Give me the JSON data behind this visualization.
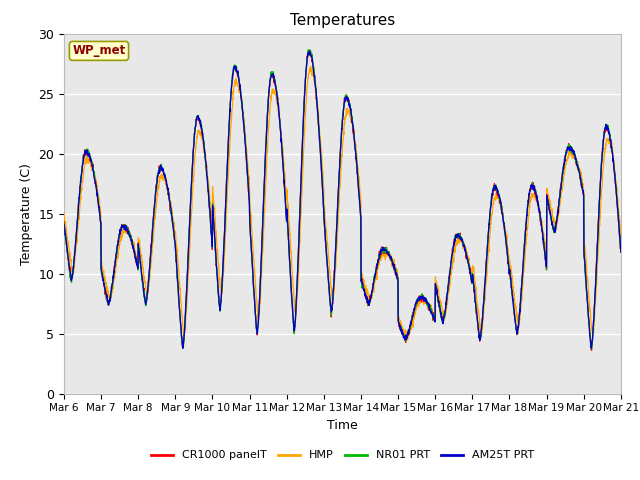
{
  "title": "Temperatures",
  "ylabel": "Temperature (C)",
  "xlabel": "Time",
  "ylim": [
    0,
    30
  ],
  "annotation": "WP_met",
  "bg_color": "#e8e8e8",
  "fig_bg": "#ffffff",
  "legend_labels": [
    "CR1000 panelT",
    "HMP",
    "NR01 PRT",
    "AM25T PRT"
  ],
  "legend_colors": [
    "#ff0000",
    "#ffa500",
    "#00bb00",
    "#0000cc"
  ],
  "xtick_labels": [
    "Mar 6",
    "Mar 7",
    "Mar 8",
    "Mar 9",
    "Mar 10",
    "Mar 11",
    "Mar 12",
    "Mar 13",
    "Mar 14",
    "Mar 15",
    "Mar 16",
    "Mar 17",
    "Mar 18",
    "Mar 19",
    "Mar 20",
    "Mar 21"
  ],
  "num_days": 15,
  "pts_per_day": 144,
  "day_maxes_ref": [
    20.2,
    14.0,
    18.8,
    23.0,
    27.2,
    26.6,
    28.5,
    24.7,
    12.0,
    8.0,
    13.2,
    17.2,
    17.3,
    20.5,
    22.2
  ],
  "day_mins_ref": [
    9.5,
    7.5,
    7.5,
    3.8,
    7.0,
    5.0,
    5.2,
    6.8,
    7.5,
    4.5,
    6.0,
    4.5,
    5.0,
    13.5,
    3.8
  ]
}
